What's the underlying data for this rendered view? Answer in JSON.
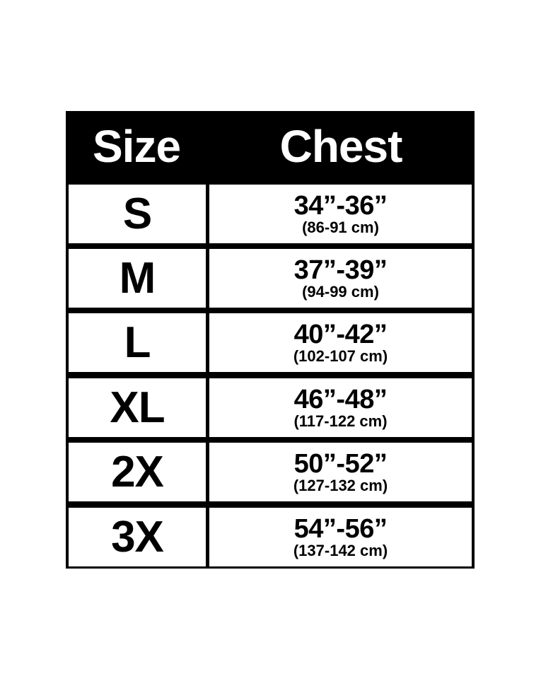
{
  "header": {
    "size": "Size",
    "chest": "Chest"
  },
  "rows": [
    {
      "size": "S",
      "inches": "34”-36”",
      "cm": "(86-91 cm)"
    },
    {
      "size": "M",
      "inches": "37”-39”",
      "cm": "(94-99 cm)"
    },
    {
      "size": "L",
      "inches": "40”-42”",
      "cm": "(102-107 cm)"
    },
    {
      "size": "XL",
      "inches": "46”-48”",
      "cm": "(117-122 cm)"
    },
    {
      "size": "2X",
      "inches": "50”-52”",
      "cm": "(127-132 cm)"
    },
    {
      "size": "3X",
      "inches": "54”-56”",
      "cm": "(137-142 cm)"
    }
  ]
}
